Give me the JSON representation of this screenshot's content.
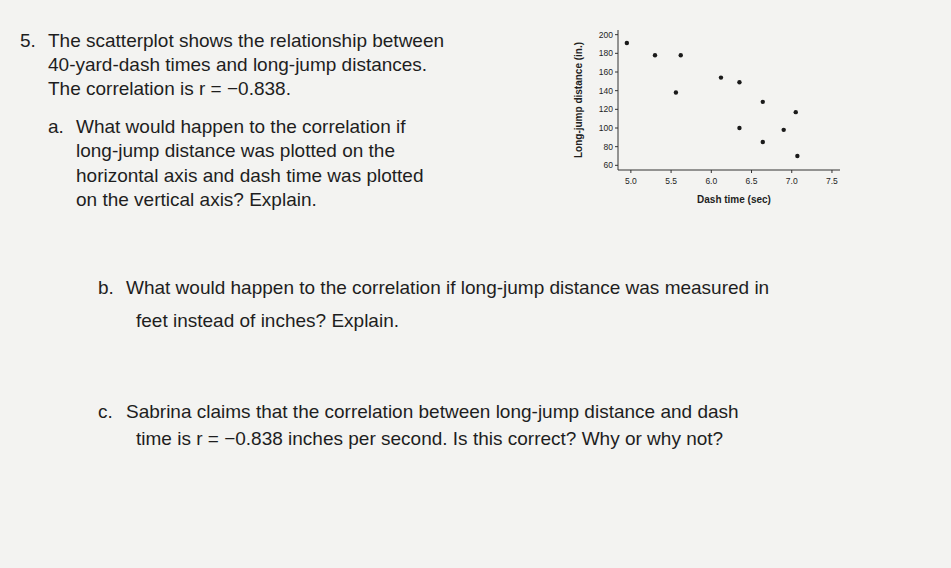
{
  "problem": {
    "number": "5.",
    "lines": [
      "The scatterplot shows the relationship between",
      "40-yard-dash times and long-jump distances.",
      "The correlation is r = −0.838."
    ]
  },
  "parts": [
    {
      "label": "a.",
      "lines": [
        "What would happen to the correlation if",
        "long-jump distance was plotted on the",
        "horizontal axis and dash time was plotted",
        "on the vertical axis? Explain."
      ]
    },
    {
      "label": "b.",
      "lines": [
        "What would happen to the correlation if long-jump distance was measured in",
        "feet instead of inches? Explain."
      ]
    },
    {
      "label": "c.",
      "lines": [
        "Sabrina claims that the correlation between long-jump distance and dash",
        "time is r = −0.838 inches per second. Is this correct? Why or why not?"
      ]
    }
  ],
  "chart_data": {
    "type": "scatter",
    "x_label": "Dash time (sec)",
    "y_label": "Long-jump distance (in.)",
    "x": [
      4.95,
      5.3,
      5.62,
      5.56,
      6.12,
      6.35,
      6.64,
      7.05,
      6.35,
      6.9,
      6.64,
      7.07
    ],
    "values": [
      191,
      178,
      178,
      138,
      154,
      149,
      128,
      117,
      100,
      98,
      85,
      70
    ],
    "color": "#1a1a1a",
    "marker": "circle",
    "xlim": [
      4.84,
      7.6
    ],
    "xticks": [
      {
        "value": 5,
        "label": "5.0"
      },
      5.5,
      {
        "value": 6,
        "label": "6.0"
      },
      6.5,
      {
        "value": 7,
        "label": "7.0"
      },
      7.5
    ],
    "ylim": [
      55,
      205
    ],
    "yticks": [
      60,
      80,
      100,
      120,
      140,
      160,
      180,
      200
    ],
    "grid": false
  }
}
